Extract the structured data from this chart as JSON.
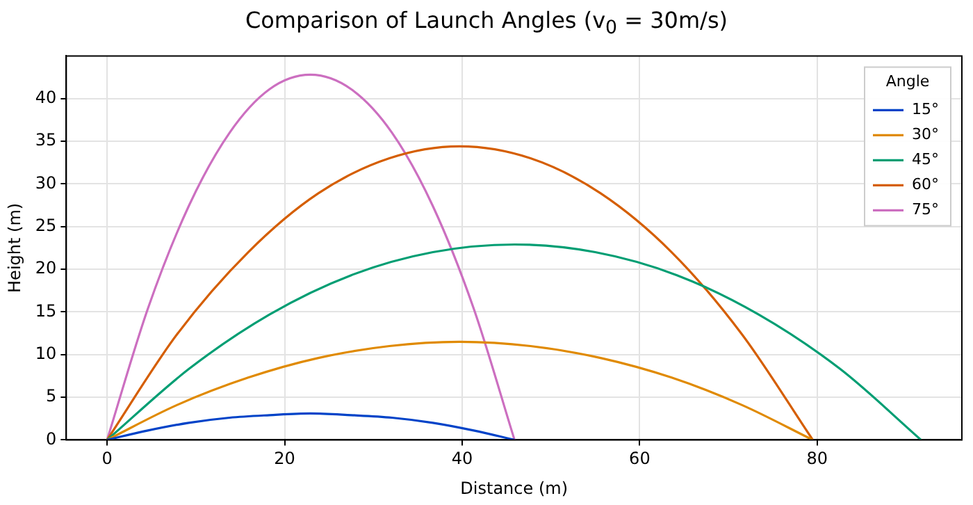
{
  "chart_data": {
    "type": "line",
    "title": "Comparison of Launch Angles (v$_{0}$ = 30m/s)",
    "xlabel": "Distance (m)",
    "ylabel": "Height (m)",
    "legend_title": "Angle",
    "legend": "top right",
    "grid": true,
    "marker": "none",
    "line_style": "solid",
    "xlim": [
      -4.6,
      96.3
    ],
    "xticks": [
      0,
      20,
      40,
      60,
      80
    ],
    "ylim": [
      0,
      45
    ],
    "yticks": [
      0,
      5,
      10,
      15,
      20,
      25,
      30,
      35,
      40
    ],
    "series": [
      {
        "name": "15°",
        "color": "#0043c8",
        "x": [
          0,
          4.6,
          9.2,
          13.8,
          18.3,
          22.9,
          27.5,
          32.1,
          36.7,
          41.3,
          45.9
        ],
        "values": [
          0,
          1.1,
          2.0,
          2.6,
          2.9,
          3.1,
          2.9,
          2.6,
          2.0,
          1.1,
          0
        ]
      },
      {
        "name": "30°",
        "color": "#e08a00",
        "x": [
          0,
          7.9,
          15.9,
          23.8,
          31.8,
          39.7,
          47.7,
          55.6,
          63.6,
          71.5,
          79.5
        ],
        "values": [
          0,
          4.1,
          7.3,
          9.6,
          11.0,
          11.5,
          11.0,
          9.6,
          7.3,
          4.1,
          0
        ]
      },
      {
        "name": "45°",
        "color": "#009e73",
        "x": [
          0,
          9.2,
          18.3,
          27.5,
          36.7,
          45.9,
          55.0,
          64.2,
          73.4,
          82.6,
          91.7
        ],
        "values": [
          0,
          8.3,
          14.7,
          19.3,
          22.0,
          22.9,
          22.0,
          19.3,
          14.7,
          8.3,
          0
        ]
      },
      {
        "name": "60°",
        "color": "#d55e00",
        "x": [
          0,
          7.9,
          15.9,
          23.8,
          31.8,
          39.7,
          47.7,
          55.6,
          63.6,
          71.5,
          79.5
        ],
        "values": [
          0,
          12.4,
          22.0,
          28.9,
          33.0,
          34.4,
          33.0,
          28.9,
          22.0,
          12.4,
          0
        ]
      },
      {
        "name": "75°",
        "color": "#cc6fc0",
        "x": [
          0,
          4.6,
          9.2,
          13.8,
          18.3,
          22.9,
          27.5,
          32.1,
          36.7,
          41.3,
          45.9
        ],
        "values": [
          0,
          15.4,
          27.4,
          36.0,
          41.1,
          42.8,
          41.1,
          36.0,
          27.4,
          15.4,
          0
        ]
      }
    ]
  }
}
